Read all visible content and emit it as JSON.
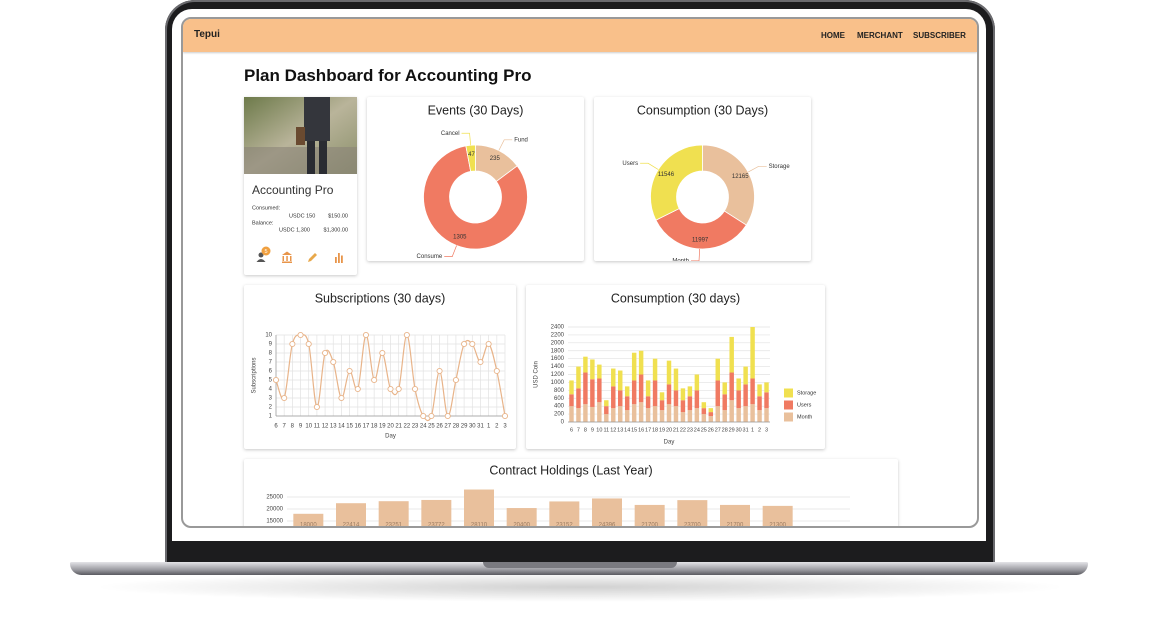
{
  "header": {
    "brand": "Tepui",
    "nav": [
      "HOME",
      "MERCHANT",
      "SUBSCRIBER"
    ]
  },
  "title": "Plan Dashboard for Accounting Pro",
  "card": {
    "name": "Accounting Pro",
    "consumed_label": "Consumed:",
    "consumed_amount": "USDC 150",
    "consumed_usd": "$150.00",
    "balance_label": "Balance:",
    "balance_amount": "USDC 1,300",
    "balance_usd": "$1,300.00",
    "badge": 5
  },
  "chart_data": [
    {
      "type": "pie",
      "title": "Events (30 Days)",
      "categories": [
        "Fund",
        "Consume",
        "Cancel"
      ],
      "values": [
        235,
        1305,
        47
      ],
      "colors": [
        "#e9c09c",
        "#f07a62",
        "#f0e050"
      ]
    },
    {
      "type": "pie",
      "title": "Consumption (30 Days)",
      "categories": [
        "Storage",
        "Month",
        "Users"
      ],
      "values": [
        12165,
        11997,
        11546
      ],
      "colors": [
        "#e9c09c",
        "#f07a62",
        "#f0e050"
      ]
    },
    {
      "type": "line",
      "title": "Subscriptions (30 days)",
      "x_label": "Day",
      "y_label": "Subscriptions",
      "categories": [
        "6",
        "7",
        "8",
        "9",
        "10",
        "11",
        "12",
        "13",
        "14",
        "15",
        "16",
        "17",
        "18",
        "19",
        "20",
        "21",
        "22",
        "23",
        "24",
        "25",
        "26",
        "27",
        "28",
        "29",
        "30",
        "31",
        "1",
        "2",
        "3"
      ],
      "values": [
        5,
        3,
        9,
        10,
        9,
        2,
        8,
        7,
        3,
        6,
        4,
        10,
        5,
        8,
        4,
        4,
        10,
        4,
        1,
        1,
        6,
        1,
        5,
        9,
        9,
        7,
        9,
        6,
        1
      ],
      "color": "#e8b48a",
      "ylim": [
        1,
        10
      ],
      "yticks": [
        1,
        2,
        3,
        4,
        5,
        6,
        7,
        8,
        9,
        10
      ],
      "grid": true
    },
    {
      "type": "bar",
      "stacked": true,
      "title": "Consumption (30 days)",
      "x_label": "Day",
      "y_label": "USD Coin",
      "categories": [
        "6",
        "7",
        "8",
        "9",
        "10",
        "11",
        "12",
        "13",
        "14",
        "15",
        "16",
        "17",
        "18",
        "19",
        "20",
        "21",
        "22",
        "23",
        "24",
        "25",
        "26",
        "27",
        "28",
        "29",
        "30",
        "31",
        "1",
        "2",
        "3"
      ],
      "series": [
        {
          "name": "Month",
          "color": "#e9c09c",
          "values": [
            400,
            350,
            450,
            380,
            500,
            200,
            350,
            400,
            300,
            450,
            500,
            350,
            400,
            300,
            450,
            400,
            250,
            300,
            350,
            200,
            150,
            400,
            300,
            550,
            350,
            400,
            450,
            300,
            350
          ]
        },
        {
          "name": "Users",
          "color": "#f07a62",
          "values": [
            300,
            500,
            800,
            700,
            600,
            200,
            550,
            400,
            350,
            600,
            700,
            300,
            650,
            250,
            500,
            400,
            300,
            350,
            450,
            150,
            100,
            650,
            400,
            700,
            450,
            550,
            650,
            350,
            400
          ]
        },
        {
          "name": "Storage",
          "color": "#f0e050",
          "values": [
            350,
            550,
            400,
            500,
            350,
            150,
            450,
            500,
            250,
            700,
            600,
            400,
            550,
            200,
            600,
            550,
            300,
            250,
            400,
            150,
            100,
            550,
            300,
            900,
            300,
            450,
            1300,
            300,
            250
          ]
        }
      ],
      "ylim": [
        0,
        2400
      ],
      "yticks": [
        0,
        200,
        400,
        600,
        800,
        1000,
        1200,
        1400,
        1600,
        1800,
        2000,
        2200,
        2400
      ],
      "grid": true,
      "legend": "right"
    },
    {
      "type": "bar",
      "title": "Contract Holdings (Last Year)",
      "categories": [
        null,
        null,
        null,
        null,
        null,
        null,
        null,
        null,
        null,
        null,
        null,
        null
      ],
      "values": [
        18000,
        22414,
        23251,
        23772,
        28110,
        20400,
        23152,
        24396,
        21700,
        23700,
        21700,
        21300
      ],
      "color": "#e9c09c",
      "ylim": [
        0,
        30000
      ],
      "yticks": [
        15000,
        20000,
        25000
      ],
      "grid": true
    }
  ]
}
